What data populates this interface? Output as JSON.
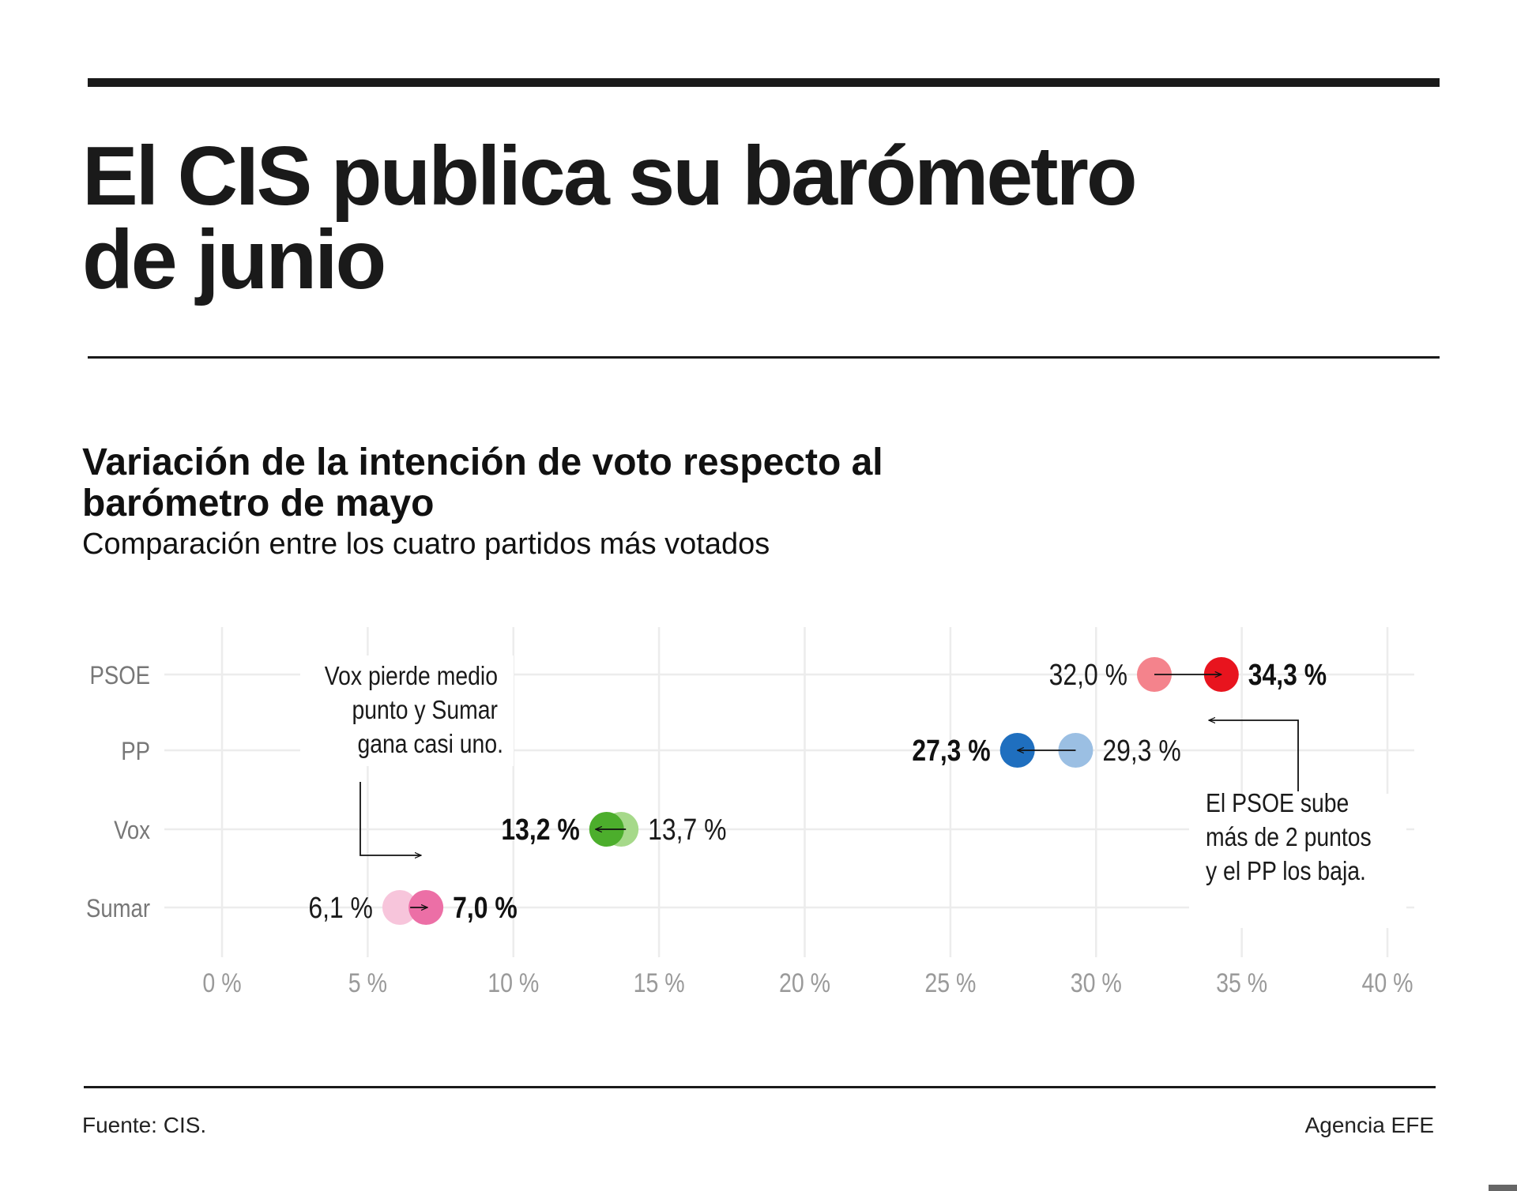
{
  "header": {
    "title_line1": "El CIS publica su barómetro",
    "title_line2": "de junio"
  },
  "chart_header": {
    "title_line1": "Variación de la intención de voto respecto al",
    "title_line2": "barómetro de mayo",
    "subtitle": "Comparación entre los cuatro partidos más votados"
  },
  "footer": {
    "source": "Fuente: CIS.",
    "credit": "Agencia EFE"
  },
  "chart_data": {
    "type": "dumbbell",
    "title": "Variación de la intención de voto respecto al barómetro de mayo",
    "subtitle": "Comparación entre los cuatro partidos más votados",
    "x_ticks": [
      0,
      5,
      10,
      15,
      20,
      25,
      30,
      35,
      40
    ],
    "x_tick_labels": [
      "0 %",
      "5 %",
      "10 %",
      "15 %",
      "20 %",
      "25 %",
      "30 %",
      "35 %",
      "40 %"
    ],
    "xlim": [
      0,
      40
    ],
    "grid": true,
    "categories": [
      "PSOE",
      "PP",
      "Vox",
      "Sumar"
    ],
    "series": [
      {
        "values": [
          32.0,
          29.3,
          13.7,
          6.1
        ],
        "labels": [
          "32,0 %",
          "29,3 %",
          "13,7 %",
          "6,1 %"
        ]
      },
      {
        "values": [
          34.3,
          27.3,
          13.2,
          7.0
        ],
        "labels": [
          "34,3 %",
          "27,3 %",
          "13,2 %",
          "7,0 %"
        ]
      }
    ],
    "colors": {
      "PSOE": {
        "previous": "#f4838c",
        "current": "#e8141e"
      },
      "PP": {
        "previous": "#9bbfe3",
        "current": "#1f6fbf"
      },
      "Vox": {
        "previous": "#a6d98a",
        "current": "#4cae2c"
      },
      "Sumar": {
        "previous": "#f7c5db",
        "current": "#ec6fa6"
      }
    },
    "annotations": [
      {
        "lines": [
          "Vox pierde medio",
          "punto y Sumar",
          "gana casi uno."
        ]
      },
      {
        "lines": [
          "El PSOE sube",
          "más de 2 puntos",
          "y el  PP los baja."
        ]
      }
    ]
  }
}
